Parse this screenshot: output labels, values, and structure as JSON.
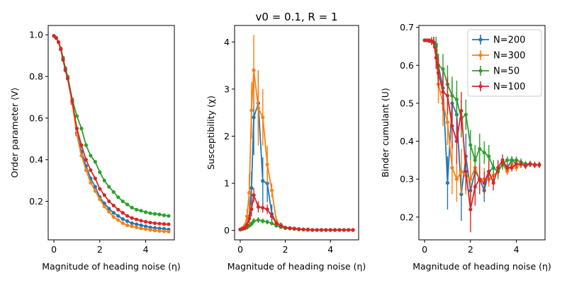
{
  "colors": {
    "N200": "#1f77b4",
    "N300": "#ff7f0e",
    "N50": "#2ca02c",
    "N100": "#d62728"
  },
  "chart_data": [
    {
      "type": "line",
      "title": "",
      "xlabel": "Magnitude of heading noise (η)",
      "ylabel": "Order parameter ⟨V⟩",
      "xlim": [
        -0.25,
        5.25
      ],
      "ylim": [
        0.015,
        1.045
      ],
      "xticks": [
        "0",
        "2",
        "4"
      ],
      "yticks": [
        "0.2",
        "0.4",
        "0.6",
        "0.8",
        "1.0"
      ],
      "x": [
        0,
        0.1,
        0.2,
        0.3,
        0.4,
        0.5,
        0.6,
        0.8,
        1.0,
        1.2,
        1.4,
        1.6,
        1.8,
        2.0,
        2.2,
        2.4,
        2.6,
        2.8,
        3.0,
        3.2,
        3.4,
        3.6,
        3.8,
        4.0,
        4.2,
        4.4,
        4.6,
        4.8,
        5.0
      ],
      "series": [
        {
          "name": "N=200",
          "color": "#1f77b4",
          "y": [
            0.995,
            0.985,
            0.965,
            0.93,
            0.88,
            0.83,
            0.79,
            0.67,
            0.53,
            0.44,
            0.37,
            0.31,
            0.27,
            0.22,
            0.19,
            0.165,
            0.145,
            0.13,
            0.115,
            0.105,
            0.095,
            0.09,
            0.085,
            0.08,
            0.075,
            0.072,
            0.07,
            0.068,
            0.065
          ]
        },
        {
          "name": "N=300",
          "color": "#ff7f0e",
          "y": [
            0.995,
            0.985,
            0.965,
            0.93,
            0.88,
            0.83,
            0.79,
            0.67,
            0.52,
            0.42,
            0.35,
            0.29,
            0.25,
            0.21,
            0.175,
            0.15,
            0.125,
            0.11,
            0.095,
            0.085,
            0.08,
            0.075,
            0.07,
            0.067,
            0.063,
            0.06,
            0.058,
            0.056,
            0.055
          ]
        },
        {
          "name": "N=50",
          "color": "#2ca02c",
          "y": [
            0.995,
            0.985,
            0.965,
            0.935,
            0.89,
            0.84,
            0.8,
            0.69,
            0.61,
            0.55,
            0.47,
            0.42,
            0.39,
            0.34,
            0.3,
            0.27,
            0.245,
            0.22,
            0.2,
            0.185,
            0.17,
            0.16,
            0.155,
            0.148,
            0.143,
            0.14,
            0.137,
            0.133,
            0.13
          ]
        },
        {
          "name": "N=100",
          "color": "#d62728",
          "y": [
            0.995,
            0.985,
            0.965,
            0.93,
            0.88,
            0.83,
            0.79,
            0.68,
            0.55,
            0.47,
            0.4,
            0.35,
            0.31,
            0.26,
            0.23,
            0.2,
            0.18,
            0.16,
            0.145,
            0.13,
            0.12,
            0.113,
            0.107,
            0.102,
            0.098,
            0.095,
            0.093,
            0.091,
            0.09
          ]
        }
      ]
    },
    {
      "type": "line",
      "title": "v0 = 0.1, R = 1",
      "xlabel": "Magnitude of heading noise (η)",
      "ylabel": "Susceptibility (χ)",
      "xlim": [
        -0.25,
        5.25
      ],
      "ylim": [
        -0.2,
        4.35
      ],
      "xticks": [
        "0",
        "2",
        "4"
      ],
      "yticks": [
        "0",
        "1",
        "2",
        "3",
        "4"
      ],
      "x": [
        0,
        0.1,
        0.2,
        0.3,
        0.4,
        0.5,
        0.6,
        0.8,
        1.0,
        1.2,
        1.4,
        1.6,
        1.8,
        2.0,
        2.2,
        2.4,
        2.6,
        2.8,
        3.0,
        3.2,
        3.4,
        3.6,
        3.8,
        4.0,
        4.2,
        4.4,
        4.6,
        4.8,
        5.0
      ],
      "series": [
        {
          "name": "N=200",
          "color": "#1f77b4",
          "y": [
            0.02,
            0.03,
            0.05,
            0.1,
            0.3,
            0.9,
            2.4,
            2.7,
            1.05,
            1.0,
            0.35,
            0.15,
            0.12,
            0.06,
            0.05,
            0.04,
            0.03,
            0.02,
            0.02,
            0.01,
            0.01,
            0.01,
            0.01,
            0.01,
            0.01,
            0.01,
            0.01,
            0.01,
            0.01
          ],
          "err": [
            0.01,
            0.02,
            0.03,
            0.05,
            0.15,
            0.35,
            0.8,
            0.7,
            0.5,
            0.4,
            0.2,
            0.08,
            0.05,
            0.03,
            0.02,
            0.02,
            0.01,
            0.01,
            0.01,
            0.01,
            0.01,
            0.01,
            0.01,
            0.01,
            0.01,
            0.01,
            0.01,
            0.01,
            0.01
          ]
        },
        {
          "name": "N=300",
          "color": "#ff7f0e",
          "y": [
            0.02,
            0.05,
            0.1,
            0.3,
            0.8,
            2.55,
            3.4,
            2.6,
            2.4,
            1.4,
            0.85,
            0.2,
            0.1,
            0.06,
            0.05,
            0.04,
            0.03,
            0.02,
            0.02,
            0.01,
            0.01,
            0.01,
            0.01,
            0.01,
            0.01,
            0.01,
            0.01,
            0.01,
            0.01
          ],
          "err": [
            0.01,
            0.03,
            0.06,
            0.15,
            0.4,
            0.6,
            0.75,
            0.8,
            0.6,
            0.4,
            0.15,
            0.1,
            0.05,
            0.03,
            0.02,
            0.02,
            0.01,
            0.01,
            0.01,
            0.01,
            0.01,
            0.01,
            0.01,
            0.01,
            0.01,
            0.01,
            0.01,
            0.01,
            0.01
          ]
        },
        {
          "name": "N=50",
          "color": "#2ca02c",
          "y": [
            0.02,
            0.03,
            0.04,
            0.06,
            0.1,
            0.14,
            0.2,
            0.22,
            0.2,
            0.18,
            0.15,
            0.1,
            0.07,
            0.05,
            0.04,
            0.03,
            0.02,
            0.02,
            0.01,
            0.01,
            0.01,
            0.01,
            0.01,
            0.01,
            0.01,
            0.01,
            0.01,
            0.01,
            0.01
          ],
          "err": [
            0.01,
            0.01,
            0.02,
            0.03,
            0.04,
            0.05,
            0.06,
            0.06,
            0.05,
            0.05,
            0.04,
            0.03,
            0.02,
            0.02,
            0.01,
            0.01,
            0.01,
            0.01,
            0.01,
            0.01,
            0.01,
            0.01,
            0.01,
            0.01,
            0.01,
            0.01,
            0.01,
            0.01,
            0.01
          ]
        },
        {
          "name": "N=100",
          "color": "#d62728",
          "y": [
            0.02,
            0.04,
            0.06,
            0.12,
            0.25,
            0.45,
            0.75,
            0.5,
            0.48,
            0.45,
            0.3,
            0.15,
            0.1,
            0.06,
            0.05,
            0.04,
            0.03,
            0.02,
            0.02,
            0.01,
            0.01,
            0.01,
            0.01,
            0.01,
            0.01,
            0.01,
            0.01,
            0.01,
            0.01
          ],
          "err": [
            0.01,
            0.02,
            0.03,
            0.06,
            0.1,
            0.15,
            0.15,
            0.12,
            0.1,
            0.1,
            0.08,
            0.05,
            0.03,
            0.02,
            0.02,
            0.01,
            0.01,
            0.01,
            0.01,
            0.01,
            0.01,
            0.01,
            0.01,
            0.01,
            0.01,
            0.01,
            0.01,
            0.01,
            0.01
          ]
        }
      ]
    },
    {
      "type": "line",
      "title": "",
      "xlabel": "Magnitude of heading noise (η)",
      "ylabel": "Binder cumulant (U)",
      "xlim": [
        -0.25,
        5.25
      ],
      "ylim": [
        0.14,
        0.705
      ],
      "xticks": [
        "0",
        "2",
        "4"
      ],
      "yticks": [
        "0.2",
        "0.3",
        "0.4",
        "0.5",
        "0.6",
        "0.7"
      ],
      "legend": {
        "position": "top-right",
        "entries": [
          "N=200",
          "N=300",
          "N=50",
          "N=100"
        ]
      },
      "x": [
        0,
        0.1,
        0.2,
        0.3,
        0.4,
        0.5,
        0.6,
        0.8,
        1.0,
        1.2,
        1.4,
        1.6,
        1.8,
        2.0,
        2.2,
        2.4,
        2.6,
        2.8,
        3.0,
        3.2,
        3.4,
        3.6,
        3.8,
        4.0,
        4.2,
        4.4,
        4.6,
        4.8,
        5.0
      ],
      "series": [
        {
          "name": "N=200",
          "color": "#1f77b4",
          "y": [
            0.666,
            0.666,
            0.665,
            0.664,
            0.66,
            0.655,
            0.6,
            0.54,
            0.29,
            0.5,
            0.47,
            0.26,
            0.36,
            0.27,
            0.32,
            0.3,
            0.27,
            0.32,
            0.33,
            0.32,
            0.34,
            0.33,
            0.35,
            0.34,
            0.34,
            0.335,
            0.34,
            0.338,
            0.338
          ],
          "err": [
            0.003,
            0.004,
            0.006,
            0.01,
            0.015,
            0.02,
            0.03,
            0.05,
            0.07,
            0.06,
            0.06,
            0.07,
            0.06,
            0.05,
            0.04,
            0.03,
            0.03,
            0.02,
            0.02,
            0.015,
            0.01,
            0.01,
            0.01,
            0.01,
            0.01,
            0.008,
            0.008,
            0.008,
            0.008
          ]
        },
        {
          "name": "N=300",
          "color": "#ff7f0e",
          "y": [
            0.666,
            0.666,
            0.665,
            0.664,
            0.66,
            0.64,
            0.55,
            0.5,
            0.45,
            0.33,
            0.3,
            0.32,
            0.31,
            0.3,
            0.33,
            0.3,
            0.3,
            0.3,
            0.31,
            0.32,
            0.34,
            0.32,
            0.34,
            0.33,
            0.34,
            0.335,
            0.34,
            0.338,
            0.337
          ],
          "err": [
            0.003,
            0.004,
            0.006,
            0.01,
            0.015,
            0.03,
            0.05,
            0.06,
            0.06,
            0.07,
            0.06,
            0.06,
            0.05,
            0.05,
            0.04,
            0.03,
            0.03,
            0.02,
            0.02,
            0.015,
            0.01,
            0.01,
            0.01,
            0.01,
            0.01,
            0.008,
            0.008,
            0.008,
            0.008
          ]
        },
        {
          "name": "N=50",
          "color": "#2ca02c",
          "y": [
            0.666,
            0.666,
            0.665,
            0.664,
            0.66,
            0.65,
            0.6,
            0.59,
            0.55,
            0.52,
            0.51,
            0.46,
            0.47,
            0.39,
            0.35,
            0.38,
            0.37,
            0.36,
            0.33,
            0.32,
            0.34,
            0.35,
            0.35,
            0.35,
            0.345,
            0.34,
            0.34,
            0.338,
            0.338
          ],
          "err": [
            0.003,
            0.004,
            0.006,
            0.01,
            0.015,
            0.02,
            0.03,
            0.04,
            0.05,
            0.05,
            0.05,
            0.05,
            0.04,
            0.04,
            0.04,
            0.04,
            0.03,
            0.03,
            0.02,
            0.02,
            0.015,
            0.01,
            0.01,
            0.01,
            0.01,
            0.008,
            0.008,
            0.008,
            0.008
          ]
        },
        {
          "name": "N=100",
          "color": "#d62728",
          "y": [
            0.666,
            0.666,
            0.665,
            0.664,
            0.66,
            0.62,
            0.58,
            0.53,
            0.52,
            0.44,
            0.4,
            0.48,
            0.32,
            0.22,
            0.28,
            0.3,
            0.29,
            0.32,
            0.29,
            0.33,
            0.35,
            0.33,
            0.33,
            0.34,
            0.34,
            0.335,
            0.34,
            0.337,
            0.338
          ],
          "err": [
            0.003,
            0.004,
            0.006,
            0.01,
            0.015,
            0.03,
            0.04,
            0.05,
            0.05,
            0.06,
            0.06,
            0.05,
            0.05,
            0.06,
            0.05,
            0.04,
            0.03,
            0.03,
            0.02,
            0.02,
            0.015,
            0.01,
            0.01,
            0.01,
            0.01,
            0.008,
            0.008,
            0.008,
            0.008
          ]
        }
      ]
    }
  ]
}
